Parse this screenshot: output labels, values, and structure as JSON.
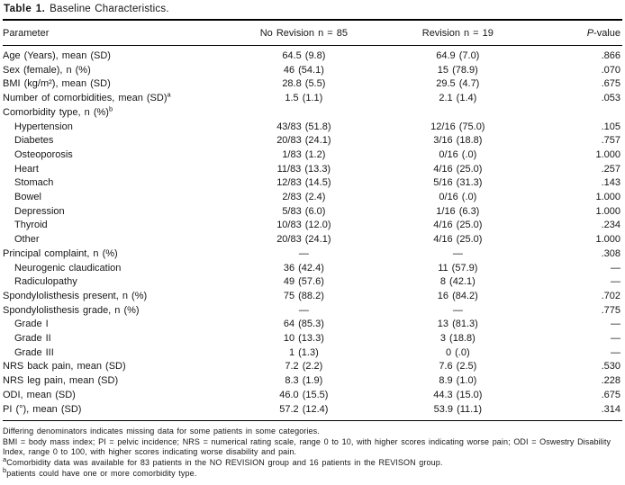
{
  "title": {
    "label": "Table 1.",
    "text": "Baseline Characteristics."
  },
  "table": {
    "columns": {
      "parameter": "Parameter",
      "no_revision": "No Revision n = 85",
      "revision": "Revision n = 19",
      "p_italic": "P",
      "p_rest": "-value"
    },
    "rows": [
      {
        "label": "Age (Years), mean (SD)",
        "indent": false,
        "sup": "",
        "no_revision": "64.5 (9.8)",
        "revision": "64.9 (7.0)",
        "p": ".866"
      },
      {
        "label": "Sex (female), n (%)",
        "indent": false,
        "sup": "",
        "no_revision": "46 (54.1)",
        "revision": "15 (78.9)",
        "p": ".070"
      },
      {
        "label": "BMI (kg/m²), mean (SD)",
        "indent": false,
        "sup": "",
        "no_revision": "28.8 (5.5)",
        "revision": "29.5 (4.7)",
        "p": ".675"
      },
      {
        "label": "Number of comorbidities, mean (SD)",
        "indent": false,
        "sup": "a",
        "no_revision": "1.5 (1.1)",
        "revision": "2.1 (1.4)",
        "p": ".053"
      },
      {
        "label": "Comorbidity type, n (%)",
        "indent": false,
        "sup": "b",
        "no_revision": "",
        "revision": "",
        "p": ""
      },
      {
        "label": "Hypertension",
        "indent": true,
        "sup": "",
        "no_revision": "43/83 (51.8)",
        "revision": "12/16 (75.0)",
        "p": ".105"
      },
      {
        "label": "Diabetes",
        "indent": true,
        "sup": "",
        "no_revision": "20/83 (24.1)",
        "revision": "3/16 (18.8)",
        "p": ".757"
      },
      {
        "label": "Osteoporosis",
        "indent": true,
        "sup": "",
        "no_revision": "1/83 (1.2)",
        "revision": "0/16 (.0)",
        "p": "1.000"
      },
      {
        "label": "Heart",
        "indent": true,
        "sup": "",
        "no_revision": "11/83 (13.3)",
        "revision": "4/16 (25.0)",
        "p": ".257"
      },
      {
        "label": "Stomach",
        "indent": true,
        "sup": "",
        "no_revision": "12/83 (14.5)",
        "revision": "5/16 (31.3)",
        "p": ".143"
      },
      {
        "label": "Bowel",
        "indent": true,
        "sup": "",
        "no_revision": "2/83 (2.4)",
        "revision": "0/16 (.0)",
        "p": "1.000"
      },
      {
        "label": "Depression",
        "indent": true,
        "sup": "",
        "no_revision": "5/83 (6.0)",
        "revision": "1/16 (6.3)",
        "p": "1.000"
      },
      {
        "label": "Thyroid",
        "indent": true,
        "sup": "",
        "no_revision": "10/83 (12.0)",
        "revision": "4/16 (25.0)",
        "p": ".234"
      },
      {
        "label": "Other",
        "indent": true,
        "sup": "",
        "no_revision": "20/83 (24.1)",
        "revision": "4/16 (25.0)",
        "p": "1.000"
      },
      {
        "label": "Principal complaint, n (%)",
        "indent": false,
        "sup": "",
        "no_revision": "—",
        "revision": "—",
        "p": ".308"
      },
      {
        "label": "Neurogenic claudication",
        "indent": true,
        "sup": "",
        "no_revision": "36 (42.4)",
        "revision": "11 (57.9)",
        "p": "—"
      },
      {
        "label": "Radiculopathy",
        "indent": true,
        "sup": "",
        "no_revision": "49 (57.6)",
        "revision": "8 (42.1)",
        "p": "—"
      },
      {
        "label": "Spondylolisthesis present, n (%)",
        "indent": false,
        "sup": "",
        "no_revision": "75 (88.2)",
        "revision": "16 (84.2)",
        "p": ".702"
      },
      {
        "label": "Spondylolisthesis grade, n (%)",
        "indent": false,
        "sup": "",
        "no_revision": "—",
        "revision": "—",
        "p": ".775"
      },
      {
        "label": "Grade I",
        "indent": true,
        "sup": "",
        "no_revision": "64 (85.3)",
        "revision": "13 (81.3)",
        "p": "—"
      },
      {
        "label": "Grade II",
        "indent": true,
        "sup": "",
        "no_revision": "10 (13.3)",
        "revision": "3 (18.8)",
        "p": "—"
      },
      {
        "label": "Grade III",
        "indent": true,
        "sup": "",
        "no_revision": "1 (1.3)",
        "revision": "0 (.0)",
        "p": "—"
      },
      {
        "label": "NRS back pain, mean (SD)",
        "indent": false,
        "sup": "",
        "no_revision": "7.2 (2.2)",
        "revision": "7.6 (2.5)",
        "p": ".530"
      },
      {
        "label": "NRS leg pain, mean (SD)",
        "indent": false,
        "sup": "",
        "no_revision": "8.3 (1.9)",
        "revision": "8.9 (1.0)",
        "p": ".228"
      },
      {
        "label": "ODI, mean (SD)",
        "indent": false,
        "sup": "",
        "no_revision": "46.0 (15.5)",
        "revision": "44.3 (15.0)",
        "p": ".675"
      },
      {
        "label": "PI (°), mean (SD)",
        "indent": false,
        "sup": "",
        "no_revision": "57.2 (12.4)",
        "revision": "53.9 (11.1)",
        "p": ".314"
      }
    ]
  },
  "footnotes": [
    {
      "sup": "",
      "text": "Differing denominators indicates missing data for some patients in some categories."
    },
    {
      "sup": "",
      "text": "BMI = body mass index; PI = pelvic incidence; NRS = numerical rating scale, range 0 to 10, with higher scores indicating worse pain; ODI = Oswestry Disability Index, range 0 to 100, with higher scores indicating worse disability and pain."
    },
    {
      "sup": "a",
      "text": "Comorbidity data was available for 83 patients in the NO REVISION group and 16 patients in the REVISON group."
    },
    {
      "sup": "b",
      "text": "patients could have one or more comorbidity type."
    }
  ]
}
